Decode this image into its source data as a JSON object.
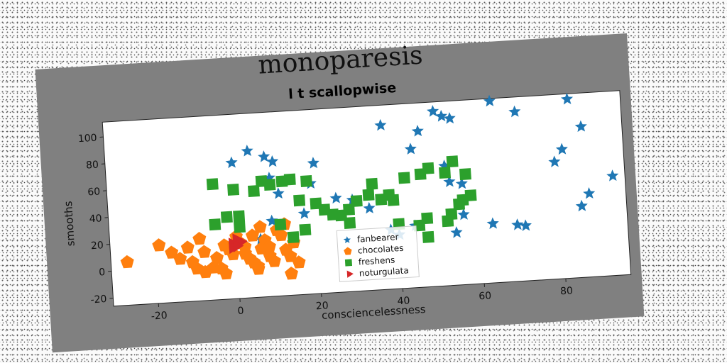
{
  "chart_data": {
    "type": "scatter",
    "title": "monoparesis",
    "subtitle": "l t scallopwise",
    "xlabel": "consciencelessness",
    "ylabel": "smooths",
    "xlim": [
      -31,
      96
    ],
    "ylim": [
      -26,
      111
    ],
    "xticks": [
      -20,
      0,
      20,
      40,
      60,
      80
    ],
    "yticks": [
      -20,
      0,
      20,
      40,
      60,
      80,
      100
    ],
    "grid": false,
    "legend_position": "lower-center",
    "series": [
      {
        "name": "fanbearer",
        "marker": "star",
        "color": "#1f77b4",
        "points": [
          [
            0,
            75
          ],
          [
            4,
            83
          ],
          [
            8,
            78
          ],
          [
            10,
            74
          ],
          [
            9,
            62
          ],
          [
            11,
            50
          ],
          [
            20,
            71
          ],
          [
            19,
            56
          ],
          [
            17,
            34
          ],
          [
            9,
            30
          ],
          [
            6,
            17
          ],
          [
            25,
            44
          ],
          [
            29,
            42
          ],
          [
            33,
            35
          ],
          [
            37,
            96
          ],
          [
            44,
            77
          ],
          [
            46,
            90
          ],
          [
            50,
            104
          ],
          [
            52,
            100
          ],
          [
            54,
            98
          ],
          [
            52,
            63
          ],
          [
            53,
            51
          ],
          [
            56,
            49
          ],
          [
            54,
            13
          ],
          [
            56,
            26
          ],
          [
            63,
            18
          ],
          [
            64,
            109
          ],
          [
            70,
            100
          ],
          [
            79,
            61
          ],
          [
            81,
            70
          ],
          [
            83,
            107
          ],
          [
            86,
            86
          ],
          [
            87,
            36
          ],
          [
            85,
            27
          ],
          [
            93,
            48
          ],
          [
            69,
            16
          ],
          [
            71,
            15
          ],
          [
            40,
            14
          ],
          [
            38,
            18
          ],
          [
            44,
            20
          ]
        ]
      },
      {
        "name": "chocolates",
        "marker": "pentagon",
        "color": "#ff7f0e",
        "points": [
          [
            -27,
            6
          ],
          [
            -19,
            17
          ],
          [
            -16,
            11
          ],
          [
            -14,
            6
          ],
          [
            -12,
            14
          ],
          [
            -11,
            3
          ],
          [
            -9,
            20
          ],
          [
            -8,
            10
          ],
          [
            -10,
            -2
          ],
          [
            -8,
            -5
          ],
          [
            -6,
            -2
          ],
          [
            -5,
            5
          ],
          [
            -4,
            -3
          ],
          [
            -3,
            14
          ],
          [
            -2,
            11
          ],
          [
            -1,
            7
          ],
          [
            0,
            20
          ],
          [
            1,
            15
          ],
          [
            2,
            12
          ],
          [
            2,
            7
          ],
          [
            3,
            3
          ],
          [
            4,
            0
          ],
          [
            5,
            -3
          ],
          [
            6,
            10
          ],
          [
            6,
            26
          ],
          [
            7,
            16
          ],
          [
            8,
            11
          ],
          [
            8,
            4
          ],
          [
            9,
            0
          ],
          [
            10,
            23
          ],
          [
            11,
            19
          ],
          [
            12,
            8
          ],
          [
            13,
            3
          ],
          [
            14,
            13
          ],
          [
            15,
            -2
          ],
          [
            13,
            -10
          ],
          [
            12,
            27
          ],
          [
            4,
            20
          ],
          [
            5,
            -5
          ],
          [
            -3,
            -7
          ]
        ]
      },
      {
        "name": "freshens",
        "marker": "square",
        "color": "#2ca02c",
        "points": [
          [
            -5,
            60
          ],
          [
            -5,
            30
          ],
          [
            -2,
            35
          ],
          [
            0,
            55
          ],
          [
            1,
            35
          ],
          [
            5,
            53
          ],
          [
            7,
            60
          ],
          [
            9,
            57
          ],
          [
            12,
            59
          ],
          [
            14,
            60
          ],
          [
            16,
            44
          ],
          [
            18,
            58
          ],
          [
            20,
            41
          ],
          [
            22,
            36
          ],
          [
            24,
            32
          ],
          [
            26,
            31
          ],
          [
            28,
            35
          ],
          [
            30,
            41
          ],
          [
            33,
            45
          ],
          [
            34,
            53
          ],
          [
            36,
            41
          ],
          [
            38,
            44
          ],
          [
            39,
            40
          ],
          [
            42,
            56
          ],
          [
            46,
            58
          ],
          [
            48,
            62
          ],
          [
            52,
            58
          ],
          [
            54,
            66
          ],
          [
            57,
            56
          ],
          [
            56,
            37
          ],
          [
            58,
            40
          ],
          [
            55,
            34
          ],
          [
            52,
            22
          ],
          [
            53,
            27
          ],
          [
            47,
            25
          ],
          [
            45,
            20
          ],
          [
            47,
            11
          ],
          [
            40,
            22
          ],
          [
            28,
            25
          ],
          [
            17,
            22
          ],
          [
            14,
            17
          ],
          [
            11,
            27
          ],
          [
            1,
            27
          ]
        ]
      },
      {
        "name": "noturgulata",
        "marker": "triangle",
        "color": "#d62728",
        "points": [
          [
            -1,
            15
          ],
          [
            0,
            18
          ],
          [
            1,
            16
          ],
          [
            -1,
            12
          ],
          [
            0,
            13
          ]
        ]
      }
    ]
  }
}
